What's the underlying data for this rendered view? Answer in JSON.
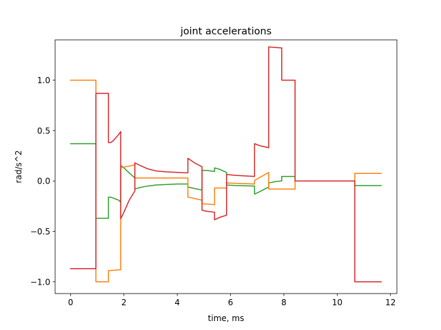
{
  "chart_data": {
    "type": "line",
    "title": "joint accelerations",
    "xlabel": "time, ms",
    "ylabel": "rad/s^2",
    "xlim": [
      -0.58,
      12.24
    ],
    "ylim": [
      -1.117,
      1.4
    ],
    "xticks": [
      0,
      2,
      4,
      6,
      8,
      10,
      12
    ],
    "xtick_labels": [
      "0",
      "2",
      "4",
      "6",
      "8",
      "10",
      "12"
    ],
    "yticks": [
      -1.0,
      -0.5,
      0.0,
      0.5,
      1.0
    ],
    "ytick_labels": [
      "−1.0",
      "−0.5",
      "0.0",
      "0.5",
      "1.0"
    ],
    "grid": false,
    "series": [
      {
        "color": "#2ca02c",
        "x": [
          0,
          0.95,
          0.95,
          1.42,
          1.42,
          1.5,
          1.6,
          1.7,
          1.8,
          1.88,
          1.88,
          2.0,
          2.2,
          2.41,
          2.41,
          2.6,
          2.9,
          3.2,
          3.6,
          4.0,
          4.4,
          4.4,
          4.65,
          4.93,
          4.93,
          5.1,
          5.4,
          5.4,
          5.6,
          5.85,
          5.85,
          6.2,
          6.9,
          6.9,
          7.1,
          7.43,
          7.43,
          7.7,
          7.92,
          7.92,
          8.42,
          8.42,
          9.0,
          10.66,
          10.66,
          11.65
        ],
        "y": [
          0.37,
          0.37,
          -0.37,
          -0.37,
          -0.16,
          -0.16,
          -0.17,
          -0.18,
          -0.19,
          -0.21,
          0.155,
          0.13,
          0.08,
          0.03,
          -0.08,
          -0.065,
          -0.05,
          -0.04,
          -0.035,
          -0.03,
          -0.03,
          -0.06,
          -0.075,
          -0.09,
          0.105,
          0.105,
          0.095,
          0.13,
          0.115,
          0.085,
          -0.04,
          -0.045,
          -0.05,
          -0.13,
          -0.105,
          -0.06,
          -0.02,
          -0.005,
          0.0,
          0.045,
          0.045,
          0.0,
          0.0,
          0.0,
          -0.045,
          -0.045
        ]
      },
      {
        "color": "#ff7f0e",
        "x": [
          0,
          0.95,
          0.95,
          1.42,
          1.42,
          1.88,
          1.88,
          2.41,
          2.41,
          4.4,
          4.4,
          4.93,
          4.93,
          5.4,
          5.4,
          5.85,
          5.85,
          6.9,
          6.9,
          7.43,
          7.43,
          7.92,
          7.92,
          8.42,
          8.42,
          10.66,
          10.66,
          11.65
        ],
        "y": [
          1.0,
          1.0,
          -1.0,
          -1.0,
          -0.89,
          -0.88,
          0.13,
          0.16,
          0.03,
          0.03,
          -0.16,
          -0.19,
          -0.225,
          -0.235,
          -0.07,
          -0.07,
          -0.02,
          -0.03,
          0.005,
          0.085,
          -0.08,
          -0.08,
          -0.08,
          -0.08,
          0.0,
          0.0,
          0.075,
          0.075
        ]
      },
      {
        "color": "#d62728",
        "x": [
          0,
          0.95,
          0.95,
          1.42,
          1.42,
          1.5,
          1.6,
          1.7,
          1.8,
          1.88,
          1.88,
          2.0,
          2.2,
          2.41,
          2.41,
          2.6,
          2.9,
          3.2,
          3.6,
          4.0,
          4.4,
          4.4,
          4.65,
          4.93,
          4.93,
          5.1,
          5.4,
          5.4,
          5.6,
          5.85,
          5.85,
          6.2,
          6.9,
          6.9,
          7.1,
          7.43,
          7.43,
          7.92,
          7.92,
          8.42,
          8.42,
          10.66,
          10.66,
          11.65
        ],
        "y": [
          -0.87,
          -0.87,
          0.87,
          0.87,
          0.38,
          0.38,
          0.4,
          0.43,
          0.46,
          0.49,
          -0.375,
          -0.31,
          -0.19,
          -0.1,
          0.18,
          0.155,
          0.12,
          0.1,
          0.09,
          0.085,
          0.08,
          0.225,
          0.18,
          0.14,
          -0.29,
          -0.3,
          -0.31,
          -0.385,
          -0.36,
          -0.34,
          0.065,
          0.055,
          0.045,
          0.37,
          0.35,
          0.33,
          1.33,
          1.32,
          1.0,
          1.0,
          0.0,
          0.0,
          -1.0,
          -1.0
        ]
      }
    ]
  }
}
